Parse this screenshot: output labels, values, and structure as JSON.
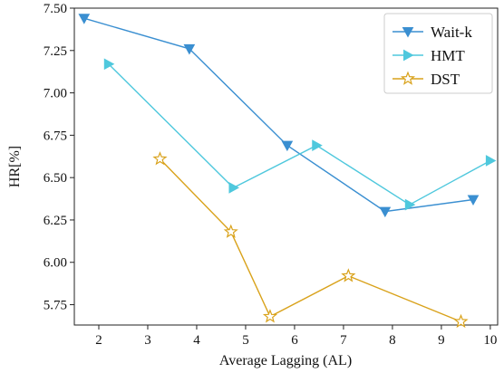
{
  "chart_data": {
    "type": "line",
    "title": "",
    "xlabel": "Average Lagging (AL)",
    "ylabel": "HR[%]",
    "xlim": [
      1.5,
      10.15
    ],
    "ylim": [
      5.63,
      7.5
    ],
    "x_ticks": [
      "2",
      "3",
      "4",
      "5",
      "6",
      "7",
      "8",
      "9",
      "10"
    ],
    "y_ticks": [
      "5.75",
      "6.00",
      "6.25",
      "6.50",
      "6.75",
      "7.00",
      "7.25",
      "7.50"
    ],
    "grid": false,
    "legend_position": "top-right",
    "series": [
      {
        "name": "Wait-k",
        "color": "#3a8fd1",
        "marker": "triangle-down",
        "x": [
          1.7,
          3.85,
          5.85,
          7.85,
          9.65
        ],
        "y": [
          7.44,
          7.26,
          6.69,
          6.3,
          6.37
        ]
      },
      {
        "name": "HMT",
        "color": "#4fc8dd",
        "marker": "triangle-right",
        "x": [
          2.2,
          4.75,
          6.45,
          8.35,
          10.0
        ],
        "y": [
          7.17,
          6.44,
          6.69,
          6.34,
          6.6
        ]
      },
      {
        "name": "DST",
        "color": "#d9a21b",
        "marker": "star",
        "x": [
          3.25,
          4.7,
          5.5,
          7.1,
          9.4
        ],
        "y": [
          6.61,
          6.18,
          5.68,
          5.92,
          5.65
        ]
      }
    ]
  }
}
